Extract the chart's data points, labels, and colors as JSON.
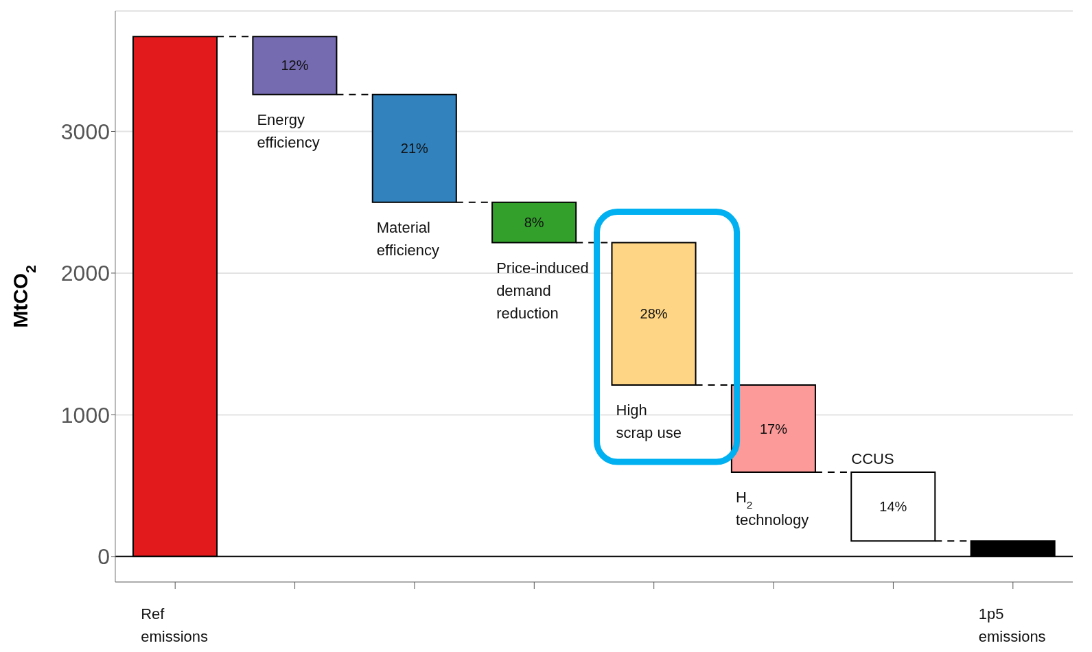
{
  "chart_data": {
    "type": "bar",
    "ylabel": "MtCO$_{2}$",
    "categories": [
      "Ref emissions",
      "Energy efficiency",
      "Material efficiency",
      "Price-induced demand reduction",
      "High scrap use",
      "H$_{2}$ technology",
      "CCUS",
      "1p5 emissions"
    ],
    "values": [
      3670,
      410,
      760,
      285,
      1005,
      615,
      485,
      110
    ],
    "base": [
      0,
      3260,
      2500,
      2215,
      1210,
      595,
      110,
      0
    ],
    "colors": [
      "#e31a1c",
      "#756bb1",
      "#3182bd",
      "#33a02c",
      "#fdd585",
      "#fb9a99",
      "#ffffff",
      "#000000"
    ],
    "annotations": [
      "12%",
      "21%",
      "8%",
      "28%",
      "17%",
      "14%"
    ],
    "ylim": [
      -180,
      3850
    ],
    "yticks": [
      0,
      1000,
      2000,
      3000
    ],
    "grid": "y",
    "ref_lines": [
      {
        "axis": "y",
        "value": 0,
        "color": "#000000"
      }
    ]
  }
}
